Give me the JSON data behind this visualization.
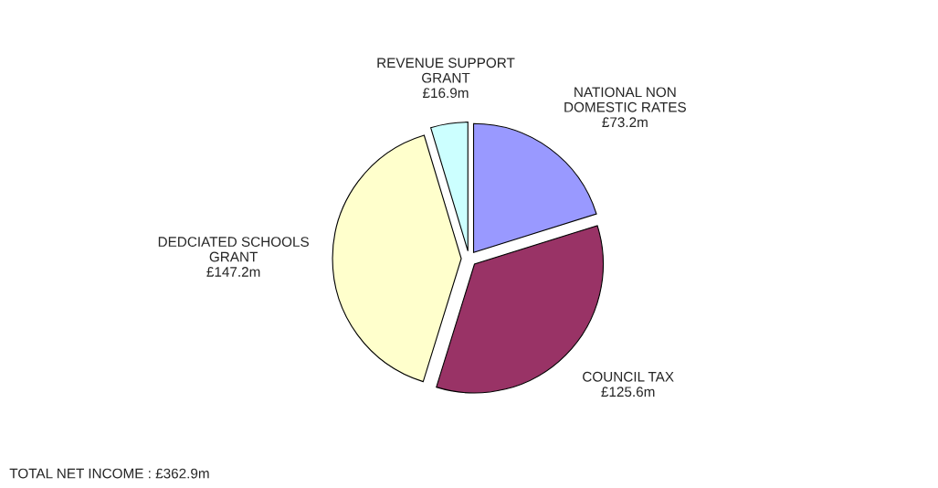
{
  "chart_data": {
    "type": "pie",
    "categories": [
      "NATIONAL NON\nDOMESTIC RATES",
      "COUNCIL TAX",
      "DEDCIATED SCHOOLS\nGRANT",
      "REVENUE SUPPORT\nGRANT"
    ],
    "values": [
      73.2,
      125.6,
      147.2,
      16.9
    ],
    "value_labels": [
      "£73.2m",
      "£125.6m",
      "£147.2m",
      "£16.9m"
    ],
    "colors": [
      "#9999ff",
      "#993366",
      "#ffffcc",
      "#ccffff"
    ],
    "annotations": [
      "TOTAL NET INCOME : £362.9m"
    ]
  }
}
